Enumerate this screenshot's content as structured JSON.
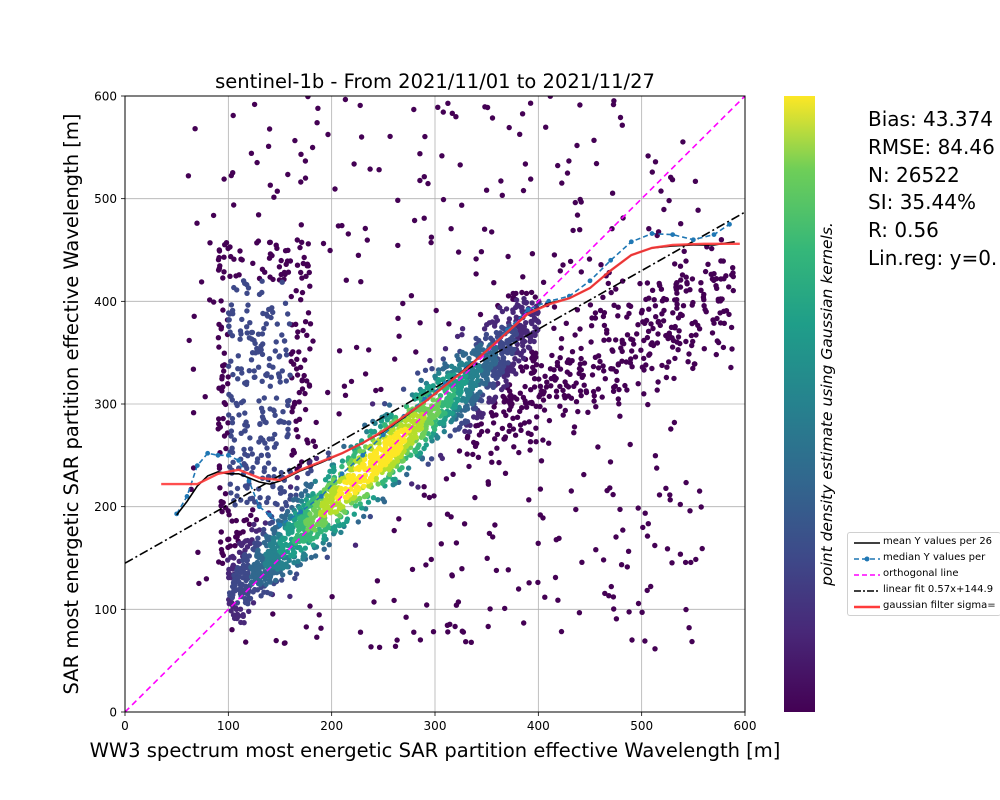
{
  "chart_data": {
    "type": "scatter",
    "title": "sentinel-1b - From 2021/11/01 to 2021/11/27",
    "xlabel": "WW3 spectrum most energetic SAR partition effective Wavelength [m]",
    "ylabel": "SAR most energetic SAR partition effective Wavelength [m]",
    "xlim": [
      0,
      600
    ],
    "ylim": [
      0,
      600
    ],
    "xticks": [
      "0",
      "100",
      "200",
      "300",
      "400",
      "500",
      "600"
    ],
    "yticks": [
      "0",
      "100",
      "200",
      "300",
      "400",
      "500",
      "600"
    ],
    "grid": true,
    "colorbar_label": "point density estimate using Gaussian kernels.",
    "colormap": "viridis",
    "stats": [
      "Bias: 43.374",
      "RMSE: 84.46",
      "N: 26522",
      "SI: 35.44%",
      "R: 0.56",
      "Lin.reg: y=0."
    ],
    "legend_position": "right",
    "legend": [
      {
        "label": "mean Y values per 26",
        "color": "#000000",
        "style": "solid"
      },
      {
        "label": "median Y values per",
        "color": "#1f77b4",
        "style": "dashed-marker"
      },
      {
        "label": "orthogonal line",
        "color": "#ff00ff",
        "style": "dashed"
      },
      {
        "label": "linear fit 0.57x+144.9",
        "color": "#000000",
        "style": "dashdot"
      },
      {
        "label": "gaussian filter sigma=",
        "color": "#ff3b3b",
        "style": "solid-thick"
      }
    ],
    "series": [
      {
        "values_x": [
          0,
          600
        ],
        "values_y": [
          0,
          600
        ]
      },
      {
        "values_x": [
          0,
          600
        ],
        "values_y": [
          144.9,
          486.9
        ]
      },
      {
        "values_x": [
          50,
          60,
          70,
          80,
          90,
          100,
          110,
          120,
          130,
          140,
          150,
          170,
          190,
          210,
          230,
          250,
          270,
          290,
          310,
          330,
          350,
          370,
          390,
          410,
          430,
          450,
          470,
          490,
          510,
          530,
          550,
          570,
          590
        ],
        "values_y": [
          192,
          205,
          220,
          230,
          234,
          232,
          232,
          228,
          224,
          222,
          225,
          235,
          243,
          252,
          262,
          273,
          287,
          302,
          318,
          335,
          352,
          370,
          388,
          398,
          403,
          413,
          430,
          445,
          452,
          454,
          455,
          455,
          458
        ]
      },
      {
        "values_x": [
          50,
          60,
          70,
          80,
          90,
          100,
          110,
          120,
          130,
          140,
          150,
          170,
          190,
          210,
          230,
          250,
          270,
          290,
          310,
          330,
          350,
          370,
          390,
          410,
          430,
          450,
          470,
          490,
          510,
          530,
          550,
          570,
          585
        ],
        "values_y": [
          193,
          210,
          240,
          252,
          250,
          250,
          245,
          225,
          200,
          192,
          182,
          195,
          210,
          232,
          250,
          270,
          288,
          305,
          320,
          335,
          352,
          372,
          392,
          400,
          405,
          420,
          440,
          458,
          466,
          465,
          460,
          465,
          475
        ]
      },
      {
        "values_x": [
          35,
          70,
          90,
          110,
          130,
          150,
          170,
          190,
          210,
          230,
          250,
          270,
          290,
          310,
          330,
          350,
          370,
          390,
          410,
          430,
          450,
          470,
          490,
          510,
          530,
          560,
          595
        ],
        "values_y": [
          222,
          222,
          232,
          236,
          228,
          226,
          236,
          244,
          252,
          262,
          274,
          288,
          302,
          318,
          334,
          352,
          370,
          388,
          397,
          403,
          413,
          430,
          445,
          452,
          455,
          456,
          456
        ]
      }
    ]
  }
}
